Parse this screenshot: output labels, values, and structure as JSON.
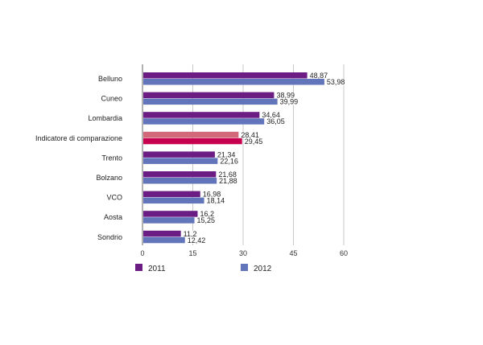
{
  "chart_data": {
    "type": "bar",
    "orientation": "horizontal",
    "categories": [
      "Belluno",
      "Cuneo",
      "Lombardia",
      "Indicatore di comparazione",
      "Trento",
      "Bolzano",
      "VCO",
      "Aosta",
      "Sondrio"
    ],
    "series": [
      {
        "name": "2011",
        "values": [
          48.87,
          38.99,
          34.64,
          28.41,
          21.34,
          21.68,
          16.98,
          16.2,
          11.2
        ],
        "labels": [
          "48,87",
          "38,99",
          "34,64",
          "28,41",
          "21,34",
          "21,68",
          "16,98",
          "16,2",
          "11,2"
        ],
        "color": "#6b1d84",
        "highlight_color": "#d2697a"
      },
      {
        "name": "2012",
        "values": [
          53.98,
          39.99,
          36.05,
          29.45,
          22.16,
          21.88,
          18.14,
          15.25,
          12.42
        ],
        "labels": [
          "53,98",
          "39,99",
          "36,05",
          "29,45",
          "22,16",
          "21,88",
          "18,14",
          "15,25",
          "12,42"
        ],
        "color": "#6275ba",
        "highlight_color": "#c6004e"
      }
    ],
    "highlighted_category": "Indicatore di comparazione",
    "xlim": [
      0,
      60
    ],
    "xticks": [
      "0",
      "15",
      "30",
      "45",
      "60"
    ],
    "grid": true,
    "legend_position": "bottom"
  }
}
